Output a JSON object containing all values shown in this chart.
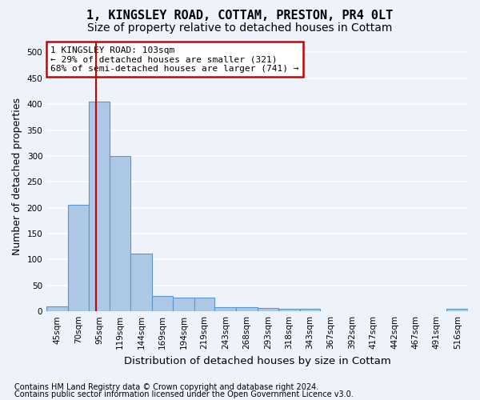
{
  "title": "1, KINGSLEY ROAD, COTTAM, PRESTON, PR4 0LT",
  "subtitle": "Size of property relative to detached houses in Cottam",
  "xlabel": "Distribution of detached houses by size in Cottam",
  "ylabel": "Number of detached properties",
  "bar_edges": [
    45,
    70,
    95,
    119,
    144,
    169,
    194,
    219,
    243,
    268,
    293,
    318,
    343,
    367,
    392,
    417,
    442,
    467,
    491,
    516,
    541
  ],
  "bar_values": [
    10,
    205,
    405,
    300,
    112,
    30,
    27,
    26,
    8,
    8,
    6,
    5,
    5,
    0,
    0,
    0,
    0,
    0,
    0,
    5
  ],
  "bar_color": "#adc8e6",
  "bar_edge_color": "#5a96cc",
  "bar_linewidth": 0.8,
  "property_size": 103,
  "red_line_color": "#cc0000",
  "annotation_text": "1 KINGSLEY ROAD: 103sqm\n← 29% of detached houses are smaller (321)\n68% of semi-detached houses are larger (741) →",
  "annotation_box_color": "#ffffff",
  "annotation_box_edge_color": "#cc0000",
  "ylim": [
    0,
    520
  ],
  "yticks": [
    0,
    50,
    100,
    150,
    200,
    250,
    300,
    350,
    400,
    450,
    500
  ],
  "footer_line1": "Contains HM Land Registry data © Crown copyright and database right 2024.",
  "footer_line2": "Contains public sector information licensed under the Open Government Licence v3.0.",
  "bg_color": "#eef2fb",
  "plot_bg_color": "#eef2fb",
  "grid_color": "#ffffff",
  "title_fontsize": 11,
  "subtitle_fontsize": 10,
  "axis_label_fontsize": 9,
  "tick_fontsize": 7.5,
  "footer_fontsize": 7,
  "annotation_fontsize": 8
}
